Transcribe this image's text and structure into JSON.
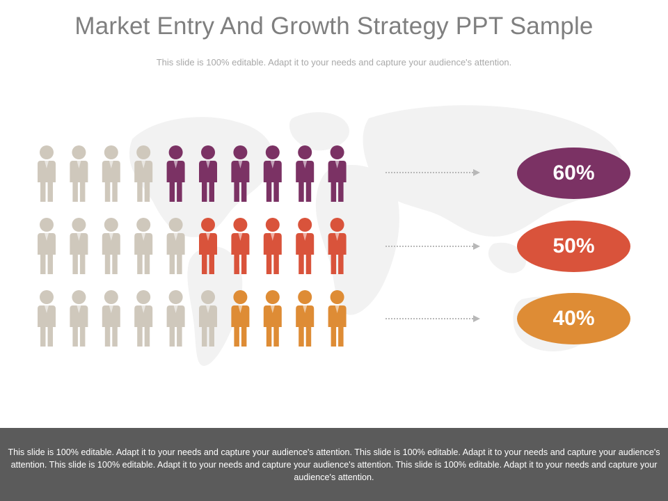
{
  "slide": {
    "title": "Market Entry And Growth Strategy PPT Sample",
    "subtitle": "This slide is 100% editable. Adapt it to your needs and capture your audience's attention."
  },
  "colors": {
    "inactive": "#cfc8bc",
    "purple": "#7b3264",
    "red": "#d9533b",
    "orange": "#de8c35",
    "arrow": "#b8b8b8",
    "map": "#f2f2f2"
  },
  "rows": [
    {
      "label": "60%",
      "count": 10,
      "highlighted": 6,
      "color_key": "purple"
    },
    {
      "label": "50%",
      "count": 10,
      "highlighted": 5,
      "color_key": "red"
    },
    {
      "label": "40%",
      "count": 10,
      "highlighted": 4,
      "color_key": "orange"
    }
  ],
  "footer": {
    "text": "This slide is 100% editable. Adapt it to your needs and capture your audience's attention. This slide is 100% editable. Adapt it to your needs and capture your audience's attention. This slide is 100% editable. Adapt it to your needs and capture your audience's attention. This slide is 100% editable. Adapt it to your needs and capture your audience's attention."
  }
}
